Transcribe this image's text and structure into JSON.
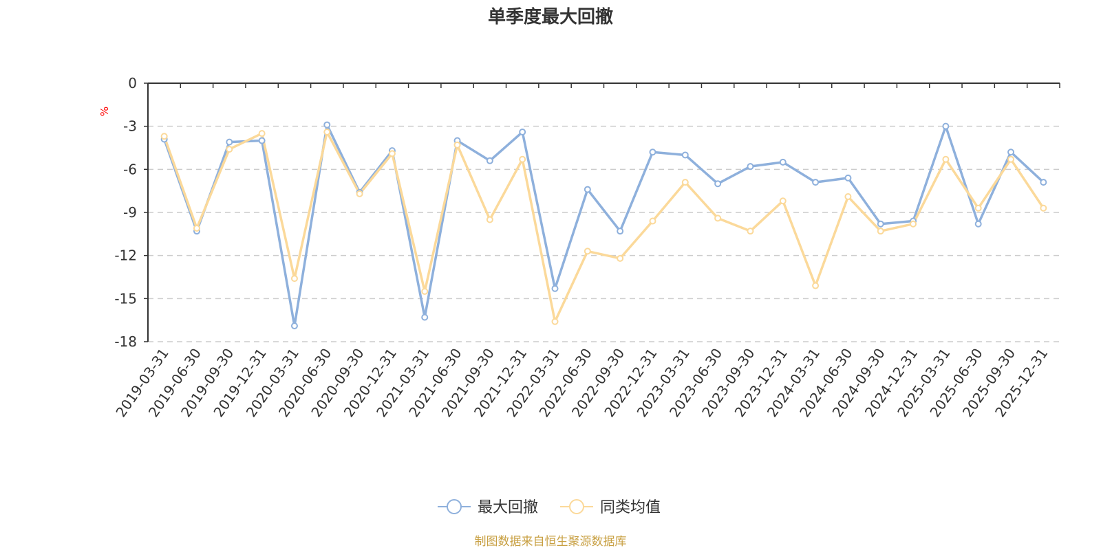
{
  "chart_data": {
    "type": "line",
    "title": "单季度最大回撤",
    "ylabel": "%",
    "ylim": [
      -18,
      0
    ],
    "yticks": [
      0,
      -3,
      -6,
      -9,
      -12,
      -15,
      -18
    ],
    "grid": true,
    "legend_position": "bottom",
    "categories": [
      "2019-03-31",
      "2019-06-30",
      "2019-09-30",
      "2019-12-31",
      "2020-03-31",
      "2020-06-30",
      "2020-09-30",
      "2020-12-31",
      "2021-03-31",
      "2021-06-30",
      "2021-09-30",
      "2021-12-31",
      "2022-03-31",
      "2022-06-30",
      "2022-09-30",
      "2022-12-31",
      "2023-03-31",
      "2023-06-30",
      "2023-09-30",
      "2023-12-31",
      "2024-03-31",
      "2024-06-30",
      "2024-09-30",
      "2024-12-31",
      "2025-03-31",
      "2025-06-30",
      "2025-09-30",
      "2025-12-31"
    ],
    "series": [
      {
        "name": "最大回撤",
        "color": "#8eb0dc",
        "values": [
          -3.9,
          -10.3,
          -4.1,
          -4.0,
          -16.9,
          -2.9,
          -7.6,
          -4.7,
          -16.3,
          -4.0,
          -5.4,
          -3.4,
          -14.3,
          -7.4,
          -10.3,
          -4.8,
          -5.0,
          -7.0,
          -5.8,
          -5.5,
          -6.9,
          -6.6,
          -9.8,
          -9.6,
          -3.0,
          -9.8,
          -4.8,
          -6.9
        ]
      },
      {
        "name": "同类均值",
        "color": "#fbd99a",
        "values": [
          -3.7,
          -10.1,
          -4.6,
          -3.5,
          -13.6,
          -3.4,
          -7.7,
          -4.9,
          -14.5,
          -4.3,
          -9.5,
          -5.3,
          -16.6,
          -11.7,
          -12.2,
          -9.6,
          -6.9,
          -9.4,
          -10.3,
          -8.2,
          -14.1,
          -7.9,
          -10.3,
          -9.8,
          -5.3,
          -8.7,
          -5.3,
          -8.7
        ]
      }
    ],
    "source_note": "制图数据来自恒生聚源数据库"
  },
  "colors": {
    "axis": "#333333",
    "grid": "#cccccc",
    "unit_label": "#ff0000",
    "source_text": "#c8a043"
  }
}
